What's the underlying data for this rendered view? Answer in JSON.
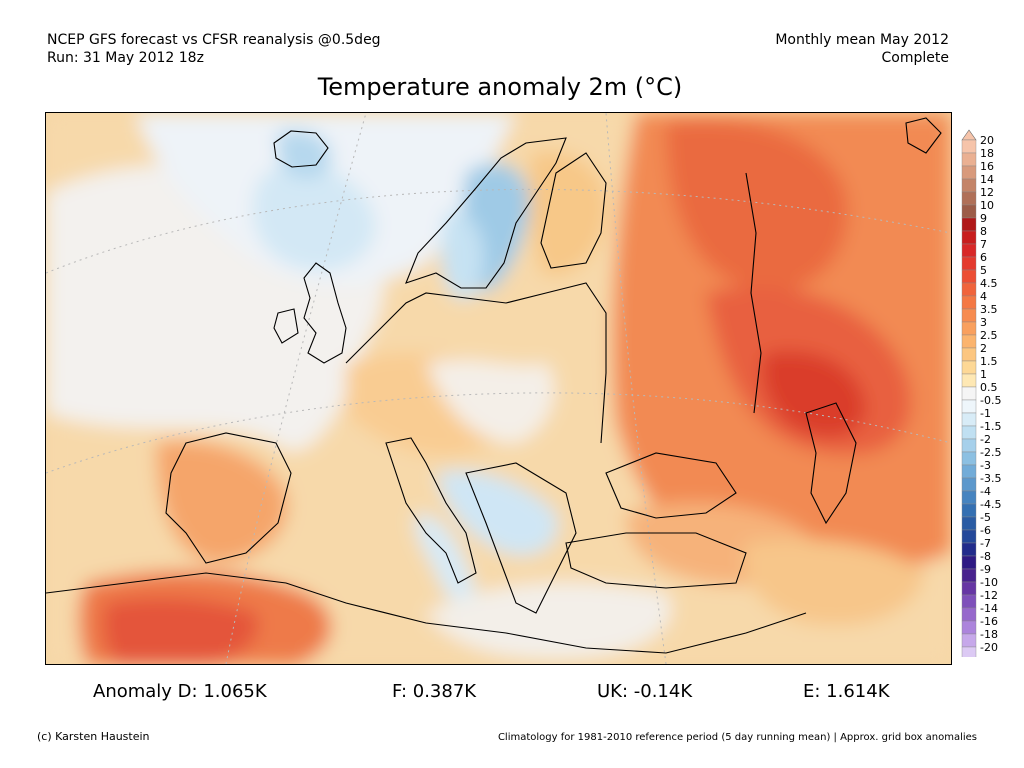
{
  "header": {
    "left_line1": "NCEP GFS forecast vs CFSR reanalysis @0.5deg",
    "left_line2": "Run: 31 May 2012 18z",
    "right_line1": "Monthly mean May 2012",
    "right_line2": "Complete"
  },
  "title": "Temperature anomaly 2m (°C)",
  "colorbar": {
    "labels": [
      "20",
      "18",
      "16",
      "14",
      "12",
      "10",
      "9",
      "8",
      "7",
      "6",
      "5",
      "4.5",
      "4",
      "3.5",
      "3",
      "2.5",
      "2",
      "1.5",
      "1",
      "0.5",
      "-0.5",
      "-1",
      "-1.5",
      "-2",
      "-2.5",
      "-3",
      "-3.5",
      "-4",
      "-4.5",
      "-5",
      "-6",
      "-7",
      "-8",
      "-9",
      "-10",
      "-12",
      "-14",
      "-16",
      "-18",
      "-20"
    ],
    "colors": [
      "#f6c4aa",
      "#eab092",
      "#d89a7c",
      "#c48468",
      "#b07058",
      "#9c5c48",
      "#b01818",
      "#c81e1e",
      "#d82828",
      "#e43a2e",
      "#ec4e34",
      "#f0643c",
      "#f47844",
      "#f78c50",
      "#f9a05e",
      "#fbb46e",
      "#fcc680",
      "#fdd896",
      "#fee8b4",
      "#f5f5f5",
      "#eef6fb",
      "#d8ecf7",
      "#c0e0f2",
      "#a6d0eb",
      "#8cc0e2",
      "#72acd8",
      "#5c98cc",
      "#4684c0",
      "#3470b2",
      "#2a5ca4",
      "#24489a",
      "#222c8c",
      "#2e1a84",
      "#48228e",
      "#6636a4",
      "#7e50ba",
      "#9668cc",
      "#ac84dc",
      "#c6a8ea",
      "#dccaf4"
    ]
  },
  "stats": {
    "d": "Anomaly D: 1.065K",
    "f": "F: 0.387K",
    "uk": "UK: -0.14K",
    "e": "E: 1.614K"
  },
  "footer": {
    "left": "(c) Karsten Haustein",
    "right": "Climatology for 1981-2010 reference period (5 day running mean) | Approx. grid box anomalies"
  }
}
